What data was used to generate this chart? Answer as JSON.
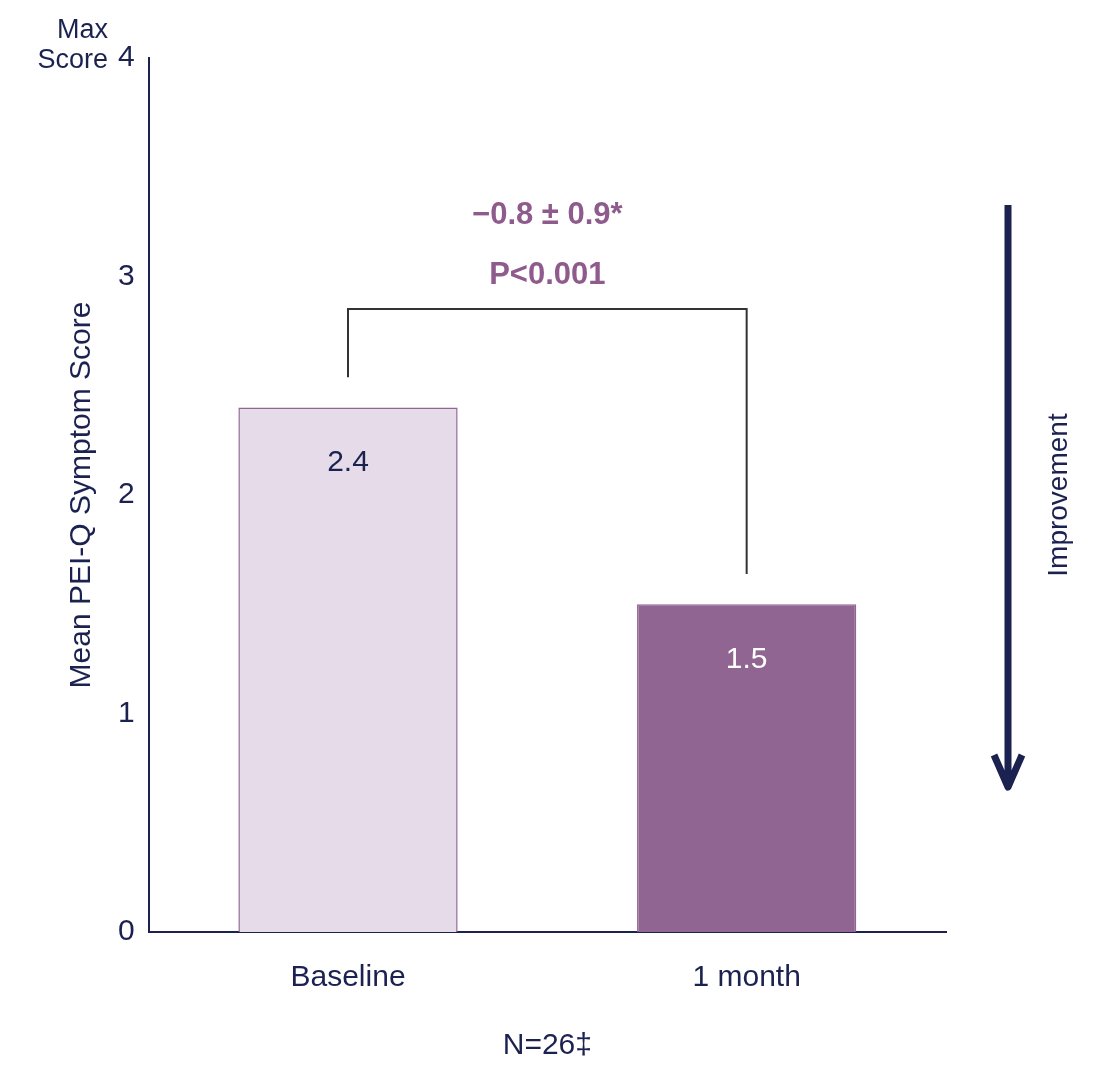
{
  "chart_data": {
    "type": "bar",
    "ylabel": "Mean PEI-Q Symptom Score",
    "xlabel": "N=26‡",
    "categories": [
      "Baseline",
      "1 month"
    ],
    "values": [
      2.4,
      1.5
    ],
    "colors": [
      "#e6dbe8",
      "#916592"
    ],
    "ylim": [
      0,
      4
    ],
    "yticks": [
      0,
      1,
      2,
      3,
      4
    ],
    "data_labels": true,
    "grid": false,
    "legend": false,
    "annotations": [
      "Max Score",
      "−0.8 ± 0.9*",
      "P<0.001",
      "Improvement"
    ]
  }
}
